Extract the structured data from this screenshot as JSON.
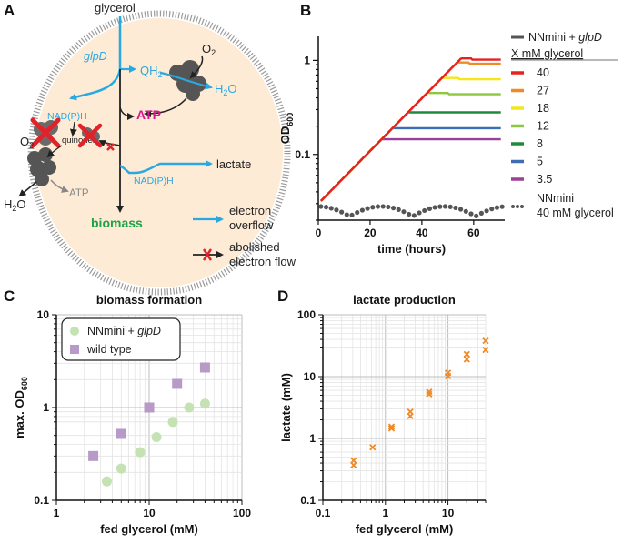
{
  "panels": {
    "a": {
      "label": "A",
      "glycerol": "glycerol",
      "glpD": "glpD",
      "qh2_main": "QH",
      "qh2_sub": "2",
      "o2_top_main": "O",
      "o2_top_sub": "2",
      "h2o_top_main": "H",
      "h2o_top_sub": "2",
      "h2o_top_end": "O",
      "atp_main": "ATP",
      "nadph_left": "NAD(P)H",
      "quinones": "quinones",
      "o2_left_main": "O",
      "o2_left_sub": "2",
      "h2o_left_main": "H",
      "h2o_left_sub": "2",
      "h2o_left_end": "O",
      "atp_left": "ATP",
      "lactate": "lactate",
      "nadph_right": "NAD(P)H",
      "biomass": "biomass",
      "legend_overflow_1": "electron",
      "legend_overflow_2": "overflow",
      "legend_abolished_1": "abolished",
      "legend_abolished_2": "electron flow",
      "colors": {
        "blue": "#29a9e1",
        "magenta": "#d6178c",
        "green": "#21a04a",
        "red": "#e0232a",
        "cell": "#fdebd6"
      }
    },
    "b": {
      "label": "B"
    },
    "c": {
      "label": "C"
    },
    "d": {
      "label": "D"
    }
  },
  "chart_data": [
    {
      "id": "B",
      "type": "line",
      "title": "",
      "xlabel": "time (hours)",
      "ylabel_main": "OD",
      "ylabel_sub": "600",
      "xlim": [
        0,
        72
      ],
      "ylim_log": [
        0.02,
        1.8
      ],
      "xticks": [
        0,
        20,
        40,
        60
      ],
      "xtick_labels": [
        "0",
        "20",
        "40",
        "60"
      ],
      "yticks": [
        0.1,
        1
      ],
      "ytick_labels": [
        "0.1",
        "1"
      ],
      "legend_title_1": "NNmini +",
      "legend_title_gene": "glpD",
      "legend_header": "X mM glycerol",
      "legend_control_1": "NNmini",
      "legend_control_2": "40 mM glycerol",
      "series": [
        {
          "name": "40",
          "color": "#e8211f",
          "plateau": 1.05,
          "t_end": 57
        },
        {
          "name": "27",
          "color": "#f08a25",
          "plateau": 0.95,
          "t_end": 56
        },
        {
          "name": "18",
          "color": "#f4e617",
          "plateau": 0.65,
          "t_end": 52
        },
        {
          "name": "12",
          "color": "#8dc63f",
          "plateau": 0.45,
          "t_end": 48
        },
        {
          "name": "8",
          "color": "#1f8a3c",
          "plateau": 0.28,
          "t_end": 40
        },
        {
          "name": "5",
          "color": "#3f6db4",
          "plateau": 0.19,
          "t_end": 34
        },
        {
          "name": "3.5",
          "color": "#9c3f98",
          "plateau": 0.145,
          "t_end": 31
        }
      ],
      "control": {
        "name": "40 mM glycerol",
        "color": "#555555",
        "level": 0.025
      }
    },
    {
      "id": "C",
      "type": "scatter",
      "title": "biomass formation",
      "xlabel": "fed glycerol (mM)",
      "ylabel_main": "max. OD",
      "ylabel_sub": "600",
      "xlim": [
        1,
        100
      ],
      "ylim": [
        0.1,
        10
      ],
      "xtick_labels": [
        "1",
        "10",
        "100"
      ],
      "ytick_labels": [
        "0.1",
        "1",
        "10"
      ],
      "legend_1_main": "NNmini +",
      "legend_1_gene": "glpD",
      "legend_2": "wild type",
      "series": [
        {
          "name": "NNmini + glpD",
          "color": "#c5e2b3",
          "marker": "circle",
          "x": [
            3.5,
            5,
            8,
            12,
            18,
            27,
            40
          ],
          "y": [
            0.16,
            0.22,
            0.33,
            0.48,
            0.7,
            1.0,
            1.1
          ]
        },
        {
          "name": "wild type",
          "color": "#b79ac8",
          "marker": "square",
          "x": [
            2.5,
            5,
            10,
            20,
            40
          ],
          "y": [
            0.3,
            0.52,
            1.0,
            1.8,
            2.7
          ]
        }
      ]
    },
    {
      "id": "D",
      "type": "scatter",
      "title": "lactate production",
      "xlabel": "fed glycerol (mM)",
      "ylabel": "lactate (mM)",
      "xlim": [
        0.1,
        40
      ],
      "ylim": [
        0.1,
        100
      ],
      "xtick_labels": [
        "0.1",
        "1",
        "10"
      ],
      "ytick_labels": [
        "0.1",
        "1",
        "10",
        "100"
      ],
      "series": [
        {
          "name": "lactate",
          "color": "#f08a25",
          "marker": "x",
          "x": [
            0.31,
            0.31,
            0.625,
            1.25,
            1.25,
            2.5,
            2.5,
            5,
            5,
            10,
            10,
            20,
            20,
            40,
            40
          ],
          "y": [
            0.37,
            0.44,
            0.72,
            1.45,
            1.55,
            2.3,
            2.7,
            5.2,
            5.7,
            10.2,
            11.5,
            19,
            23,
            27,
            38
          ]
        }
      ]
    }
  ]
}
